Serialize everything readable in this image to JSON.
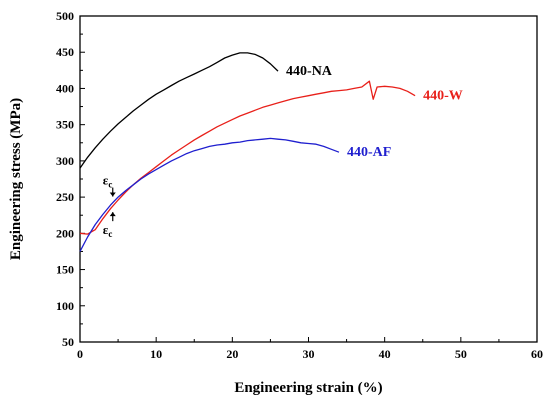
{
  "chart_data": {
    "type": "line",
    "title": "",
    "xlabel": "Engineering strain (%)",
    "ylabel": "Engineering stress (MPa)",
    "xlim": [
      0,
      60
    ],
    "ylim": [
      50,
      500
    ],
    "xticks": [
      "0",
      "10",
      "20",
      "30",
      "40",
      "50",
      "60"
    ],
    "yticks": [
      "50",
      "100",
      "150",
      "200",
      "250",
      "300",
      "350",
      "400",
      "450",
      "500"
    ],
    "grid": false,
    "legend": "none",
    "series": [
      {
        "name": "440-NA",
        "color": "#000000",
        "x": [
          0,
          1,
          2,
          3,
          4,
          5,
          6,
          7,
          8,
          9,
          10,
          11,
          12,
          13,
          14,
          15,
          16,
          17,
          18,
          19,
          20,
          21,
          22,
          23,
          24,
          25,
          26
        ],
        "y": [
          290,
          305,
          318,
          330,
          341,
          351,
          360,
          369,
          377,
          385,
          392,
          398,
          404,
          410,
          415,
          420,
          425,
          430,
          436,
          442,
          446,
          449,
          449,
          447,
          442,
          434,
          424
        ]
      },
      {
        "name": "440-W",
        "color": "#e8201a",
        "x": [
          0,
          1,
          2,
          3,
          4,
          5,
          6,
          7,
          8,
          9,
          10,
          11,
          12,
          13,
          14,
          15,
          16,
          17,
          18,
          19,
          20,
          21,
          22,
          23,
          24,
          25,
          26,
          27,
          28,
          29,
          30,
          31,
          32,
          33,
          34,
          35,
          36,
          37,
          38,
          38.5,
          39,
          40,
          41,
          42,
          43,
          44
        ],
        "y": [
          200,
          199,
          205,
          220,
          234,
          246,
          257,
          267,
          276,
          284,
          292,
          300,
          308,
          315,
          322,
          329,
          335,
          341,
          347,
          352,
          357,
          362,
          366,
          370,
          374,
          377,
          380,
          383,
          386,
          388,
          390,
          392,
          394,
          396,
          397,
          398,
          400,
          402,
          410,
          385,
          402,
          403,
          402,
          400,
          396,
          390
        ]
      },
      {
        "name": "440-AF",
        "color": "#1f1fcf",
        "x": [
          0,
          1,
          2,
          3,
          4,
          5,
          6,
          7,
          8,
          9,
          10,
          11,
          12,
          13,
          14,
          15,
          16,
          17,
          18,
          19,
          20,
          21,
          22,
          23,
          24,
          25,
          26,
          27,
          28,
          29,
          30,
          31,
          32,
          33,
          34
        ],
        "y": [
          175,
          195,
          212,
          226,
          239,
          250,
          259,
          267,
          275,
          282,
          288,
          294,
          300,
          305,
          310,
          314,
          317,
          320,
          322,
          323,
          325,
          326,
          328,
          329,
          330,
          331,
          330,
          329,
          327,
          325,
          324,
          323,
          320,
          316,
          312
        ]
      }
    ],
    "annotations": [
      {
        "text": "ε",
        "sub": "c",
        "x": 4.3,
        "y": 248,
        "arrow": "down"
      },
      {
        "text": "ε",
        "sub": "c",
        "x": 4.3,
        "y": 232,
        "arrow": "up"
      }
    ]
  }
}
